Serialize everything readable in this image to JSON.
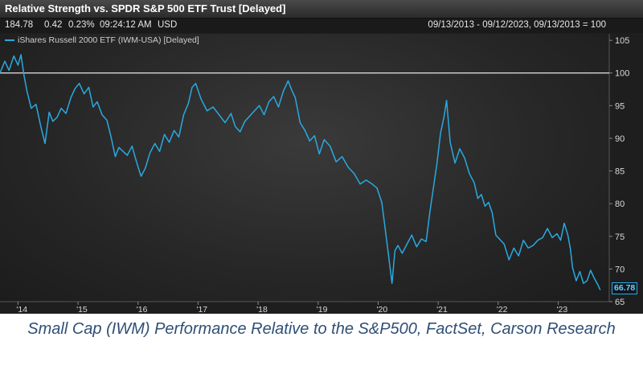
{
  "header": {
    "title": "Relative Strength vs. SPDR S&P 500 ETF Trust [Delayed]",
    "price": "184.78",
    "change": "0.42",
    "change_pct": "0.23%",
    "time": "09:24:12 AM",
    "currency": "USD",
    "range": "09/13/2013 - 09/12/2023, 09/13/2013 = 100"
  },
  "caption": "Small Cap (IWM) Performance Relative to the S&P500, FactSet, Carson Research",
  "colors": {
    "line": "#29a9e0",
    "reference_line": "#e8e8e8",
    "caption": "#2f4f76"
  },
  "chart_data": {
    "type": "line",
    "legend": "iShares Russell 2000 ETF (IWM-USA) [Delayed]",
    "legend_placement": "top-left",
    "x_ticks": [
      "'14",
      "'15",
      "'16",
      "'17",
      "'18",
      "'19",
      "'20",
      "'21",
      "'22",
      "'23"
    ],
    "y_ticks": [
      "105",
      "100",
      "95",
      "90",
      "85",
      "80",
      "75",
      "70",
      "65"
    ],
    "ylim": [
      65,
      106
    ],
    "xlim": [
      2013.7,
      2023.85
    ],
    "reference_value": 100,
    "last_value_label": "66.78",
    "grid": false,
    "series": [
      {
        "name": "iShares Russell 2000 ETF (IWM-USA) [Delayed]",
        "x": [
          2013.7,
          2013.78,
          2013.85,
          2013.93,
          2014.0,
          2014.05,
          2014.1,
          2014.15,
          2014.22,
          2014.3,
          2014.38,
          2014.45,
          2014.52,
          2014.58,
          2014.65,
          2014.72,
          2014.8,
          2014.88,
          2014.95,
          2015.02,
          2015.1,
          2015.18,
          2015.25,
          2015.32,
          2015.4,
          2015.48,
          2015.55,
          2015.62,
          2015.68,
          2015.75,
          2015.82,
          2015.9,
          2015.98,
          2016.05,
          2016.12,
          2016.2,
          2016.28,
          2016.36,
          2016.44,
          2016.52,
          2016.6,
          2016.68,
          2016.76,
          2016.84,
          2016.9,
          2016.96,
          2017.05,
          2017.15,
          2017.25,
          2017.35,
          2017.45,
          2017.55,
          2017.62,
          2017.7,
          2017.78,
          2017.86,
          2017.94,
          2018.02,
          2018.1,
          2018.18,
          2018.26,
          2018.34,
          2018.42,
          2018.5,
          2018.56,
          2018.62,
          2018.7,
          2018.78,
          2018.86,
          2018.94,
          2019.02,
          2019.1,
          2019.2,
          2019.3,
          2019.4,
          2019.5,
          2019.6,
          2019.7,
          2019.8,
          2019.9,
          2019.98,
          2020.06,
          2020.12,
          2020.18,
          2020.23,
          2020.28,
          2020.33,
          2020.4,
          2020.48,
          2020.56,
          2020.64,
          2020.72,
          2020.8,
          2020.86,
          2020.92,
          2020.98,
          2021.04,
          2021.1,
          2021.14,
          2021.2,
          2021.28,
          2021.36,
          2021.44,
          2021.52,
          2021.6,
          2021.66,
          2021.72,
          2021.78,
          2021.84,
          2021.9,
          2021.96,
          2022.02,
          2022.1,
          2022.18,
          2022.26,
          2022.34,
          2022.42,
          2022.5,
          2022.58,
          2022.66,
          2022.74,
          2022.82,
          2022.9,
          2022.98,
          2023.04,
          2023.1,
          2023.16,
          2023.2,
          2023.24,
          2023.3,
          2023.36,
          2023.42,
          2023.48,
          2023.54,
          2023.6,
          2023.66,
          2023.7
        ],
        "values": [
          100.0,
          101.8,
          100.4,
          102.6,
          101.2,
          102.8,
          99.6,
          97.2,
          94.6,
          95.2,
          91.8,
          89.2,
          94.0,
          92.6,
          93.2,
          94.6,
          93.8,
          96.2,
          97.6,
          98.4,
          96.8,
          97.8,
          94.8,
          95.6,
          93.6,
          92.8,
          90.2,
          87.2,
          88.6,
          88.0,
          87.4,
          88.8,
          86.2,
          84.2,
          85.4,
          87.8,
          89.2,
          88.0,
          90.6,
          89.4,
          91.2,
          90.2,
          93.6,
          95.4,
          97.8,
          98.4,
          96.0,
          94.2,
          94.8,
          93.6,
          92.4,
          93.8,
          91.8,
          91.0,
          92.6,
          93.4,
          94.2,
          95.0,
          93.6,
          95.6,
          96.4,
          94.8,
          97.2,
          98.8,
          97.4,
          96.2,
          92.4,
          91.2,
          89.6,
          90.4,
          87.6,
          89.8,
          88.8,
          86.4,
          87.2,
          85.6,
          84.6,
          83.0,
          83.6,
          83.0,
          82.4,
          80.2,
          76.0,
          71.6,
          67.8,
          72.8,
          73.6,
          72.4,
          73.8,
          75.2,
          73.4,
          74.6,
          74.2,
          78.6,
          82.4,
          86.2,
          90.8,
          93.4,
          95.8,
          89.4,
          86.2,
          88.4,
          87.0,
          84.6,
          83.2,
          80.8,
          81.4,
          79.6,
          80.2,
          78.6,
          75.2,
          74.6,
          73.8,
          71.4,
          73.2,
          72.0,
          74.4,
          73.2,
          73.6,
          74.4,
          74.8,
          76.2,
          74.8,
          75.4,
          74.4,
          77.0,
          75.2,
          73.2,
          70.2,
          68.2,
          69.6,
          67.8,
          68.2,
          69.8,
          68.6,
          67.6,
          66.78
        ]
      }
    ]
  }
}
